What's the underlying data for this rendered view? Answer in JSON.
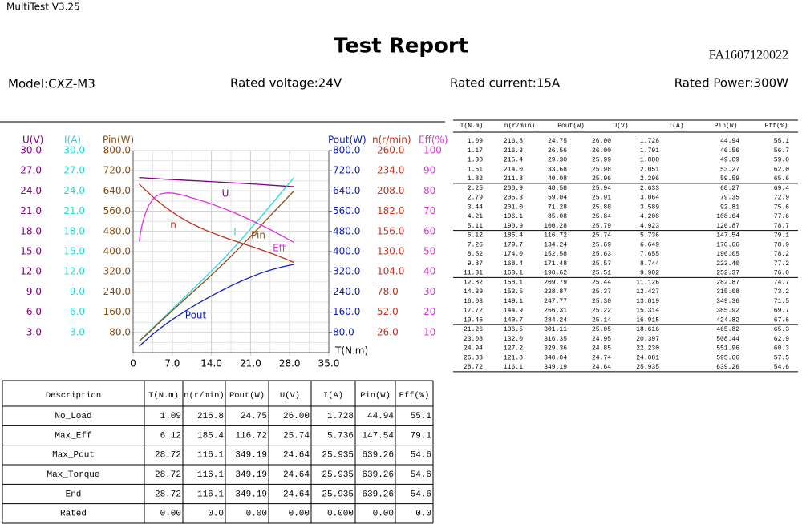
{
  "window_title": "MultiTest V3.25",
  "header": {
    "title": "Test Report",
    "report_id": "FA1607120022",
    "model": "Model:CXZ-M3",
    "rated_voltage": "Rated voltage:24V",
    "rated_current": "Rated current:15A",
    "rated_power": "Rated Power:300W"
  },
  "chart_data": {
    "type": "line",
    "x_label": "T(N.m)",
    "xlim": [
      0,
      35
    ],
    "xticks": [
      0,
      {
        "value": 7,
        "label": "7.0"
      },
      {
        "value": 14,
        "label": "14.0"
      },
      {
        "value": 21,
        "label": "21.0"
      },
      {
        "value": 28,
        "label": "28.0"
      },
      {
        "value": 35,
        "label": "35.0"
      }
    ],
    "left_axes": [
      {
        "label": "U(V)",
        "color": "#800080",
        "curve_label": "U",
        "lim": [
          0,
          30
        ],
        "ticks": [
          {
            "value": 30,
            "label": "30.0"
          },
          {
            "value": 27,
            "label": "27.0"
          },
          {
            "value": 24,
            "label": "24.0"
          },
          {
            "value": 21,
            "label": "21.0"
          },
          {
            "value": 18,
            "label": "18.0"
          },
          {
            "value": 15,
            "label": "15.0"
          },
          {
            "value": 12,
            "label": "12.0"
          },
          {
            "value": 9,
            "label": "9.0"
          },
          {
            "value": 6,
            "label": "6.0"
          },
          {
            "value": 3,
            "label": "3.0"
          }
        ]
      },
      {
        "label": "I(A)",
        "color": "#22d8e0",
        "curve_label": "I",
        "lim": [
          0,
          30
        ],
        "ticks": [
          {
            "value": 30,
            "label": "30.0"
          },
          {
            "value": 27,
            "label": "27.0"
          },
          {
            "value": 24,
            "label": "24.0"
          },
          {
            "value": 21,
            "label": "21.0"
          },
          {
            "value": 18,
            "label": "18.0"
          },
          {
            "value": 15,
            "label": "15.0"
          },
          {
            "value": 12,
            "label": "12.0"
          },
          {
            "value": 9,
            "label": "9.0"
          },
          {
            "value": 6,
            "label": "6.0"
          },
          {
            "value": 3,
            "label": "3.0"
          }
        ]
      },
      {
        "label": "Pin(W)",
        "color": "#8b4a10",
        "curve_label": "Pin",
        "lim": [
          0,
          800
        ],
        "ticks": [
          {
            "value": 800,
            "label": "800.0"
          },
          {
            "value": 720,
            "label": "720.0"
          },
          {
            "value": 640,
            "label": "640.0"
          },
          {
            "value": 560,
            "label": "560.0"
          },
          {
            "value": 480,
            "label": "480.0"
          },
          {
            "value": 400,
            "label": "400.0"
          },
          {
            "value": 320,
            "label": "320.0"
          },
          {
            "value": 240,
            "label": "240.0"
          },
          {
            "value": 160,
            "label": "160.0"
          },
          {
            "value": 80,
            "label": "80.0"
          }
        ]
      }
    ],
    "right_axes": [
      {
        "label": "Pout(W)",
        "color": "#1020b0",
        "curve_label": "Pout",
        "lim": [
          0,
          800
        ],
        "ticks": [
          {
            "value": 800,
            "label": "800.0"
          },
          {
            "value": 720,
            "label": "720.0"
          },
          {
            "value": 640,
            "label": "640.0"
          },
          {
            "value": 560,
            "label": "560.0"
          },
          {
            "value": 480,
            "label": "480.0"
          },
          {
            "value": 400,
            "label": "400.0"
          },
          {
            "value": 320,
            "label": "320.0"
          },
          {
            "value": 240,
            "label": "240.0"
          },
          {
            "value": 160,
            "label": "160.0"
          },
          {
            "value": 80,
            "label": "80.0"
          }
        ]
      },
      {
        "label": "n(r/min)",
        "color": "#c0301c",
        "curve_label": "n",
        "lim": [
          0,
          260
        ],
        "ticks": [
          {
            "value": 260,
            "label": "260.0"
          },
          {
            "value": 234,
            "label": "234.0"
          },
          {
            "value": 208,
            "label": "208.0"
          },
          {
            "value": 182,
            "label": "182.0"
          },
          {
            "value": 156,
            "label": "156.0"
          },
          {
            "value": 130,
            "label": "130.0"
          },
          {
            "value": 104,
            "label": "104.0"
          },
          {
            "value": 78,
            "label": "78.0"
          },
          {
            "value": 52,
            "label": "52.0"
          },
          {
            "value": 26,
            "label": "26.0"
          }
        ]
      },
      {
        "label": "Eff(%)",
        "color": "#e030e0",
        "curve_label": "Eff",
        "lim": [
          0,
          100
        ],
        "ticks": [
          100,
          90,
          80,
          70,
          60,
          50,
          40,
          30,
          20,
          10
        ]
      }
    ]
  },
  "data_table": {
    "columns": [
      "T(N.m)",
      "n(r/min)",
      "Pout(W)",
      "U(V)",
      "I(A)",
      "Pin(W)",
      "Eff(%)"
    ],
    "rows": [
      [
        "1.09",
        "216.8",
        "24.75",
        "26.00",
        "1.728",
        "44.94",
        "55.1"
      ],
      [
        "1.17",
        "216.3",
        "26.56",
        "26.00",
        "1.791",
        "46.56",
        "56.7"
      ],
      [
        "1.30",
        "215.4",
        "29.30",
        "25.99",
        "1.888",
        "49.09",
        "59.0"
      ],
      [
        "1.51",
        "214.0",
        "33.68",
        "25.98",
        "2.051",
        "53.27",
        "62.0"
      ],
      [
        "1.82",
        "211.8",
        "40.08",
        "25.96",
        "2.296",
        "59.59",
        "65.6"
      ],
      [
        "2.25",
        "208.9",
        "48.58",
        "25.94",
        "2.633",
        "68.27",
        "69.4"
      ],
      [
        "2.79",
        "205.3",
        "59.04",
        "25.91",
        "3.064",
        "79.35",
        "72.9"
      ],
      [
        "3.44",
        "201.0",
        "71.28",
        "25.88",
        "3.589",
        "92.81",
        "75.6"
      ],
      [
        "4.21",
        "196.1",
        "85.08",
        "25.84",
        "4.208",
        "108.64",
        "77.6"
      ],
      [
        "5.11",
        "190.9",
        "100.28",
        "25.79",
        "4.923",
        "126.87",
        "78.7"
      ],
      [
        "6.12",
        "185.4",
        "116.72",
        "25.74",
        "5.736",
        "147.54",
        "79.1"
      ],
      [
        "7.26",
        "179.7",
        "134.24",
        "25.69",
        "6.649",
        "170.66",
        "78.9"
      ],
      [
        "8.52",
        "174.0",
        "152.58",
        "25.63",
        "7.655",
        "196.05",
        "78.2"
      ],
      [
        "9.87",
        "168.4",
        "171.48",
        "25.57",
        "8.744",
        "223.40",
        "77.2"
      ],
      [
        "11.31",
        "163.1",
        "190.62",
        "25.51",
        "9.902",
        "252.37",
        "76.0"
      ],
      [
        "12.82",
        "158.1",
        "209.79",
        "25.44",
        "11.126",
        "282.87",
        "74.7"
      ],
      [
        "14.39",
        "153.5",
        "228.87",
        "25.37",
        "12.427",
        "315.08",
        "73.2"
      ],
      [
        "16.03",
        "149.1",
        "247.77",
        "25.30",
        "13.819",
        "349.36",
        "71.5"
      ],
      [
        "17.72",
        "144.9",
        "266.31",
        "25.22",
        "15.314",
        "385.92",
        "69.7"
      ],
      [
        "19.46",
        "140.7",
        "284.24",
        "25.14",
        "16.915",
        "424.82",
        "67.6"
      ],
      [
        "21.26",
        "136.5",
        "301.11",
        "25.05",
        "18.616",
        "465.82",
        "65.3"
      ],
      [
        "23.08",
        "132.0",
        "316.35",
        "24.95",
        "20.397",
        "508.44",
        "62.9"
      ],
      [
        "24.94",
        "127.2",
        "329.36",
        "24.85",
        "22.230",
        "551.96",
        "60.3"
      ],
      [
        "26.83",
        "121.8",
        "340.04",
        "24.74",
        "24.081",
        "595.66",
        "57.5"
      ],
      [
        "28.72",
        "116.1",
        "349.19",
        "24.64",
        "25.935",
        "639.26",
        "54.6"
      ]
    ]
  },
  "summary_table": {
    "columns": [
      "Description",
      "T(N.m)",
      "n(r/min)",
      "Pout(W)",
      "U(V)",
      "I(A)",
      "Pin(W)",
      "Eff(%)"
    ],
    "rows": [
      [
        "No_Load",
        "1.09",
        "216.8",
        "24.75",
        "26.00",
        "1.728",
        "44.94",
        "55.1"
      ],
      [
        "Max_Eff",
        "6.12",
        "185.4",
        "116.72",
        "25.74",
        "5.736",
        "147.54",
        "79.1"
      ],
      [
        "Max_Pout",
        "28.72",
        "116.1",
        "349.19",
        "24.64",
        "25.935",
        "639.26",
        "54.6"
      ],
      [
        "Max_Torque",
        "28.72",
        "116.1",
        "349.19",
        "24.64",
        "25.935",
        "639.26",
        "54.6"
      ],
      [
        "End",
        "28.72",
        "116.1",
        "349.19",
        "24.64",
        "25.935",
        "639.26",
        "54.6"
      ],
      [
        "Rated",
        "0.00",
        "0.0",
        "0.00",
        "0.00",
        "0.000",
        "0.00",
        "0.0"
      ]
    ]
  }
}
